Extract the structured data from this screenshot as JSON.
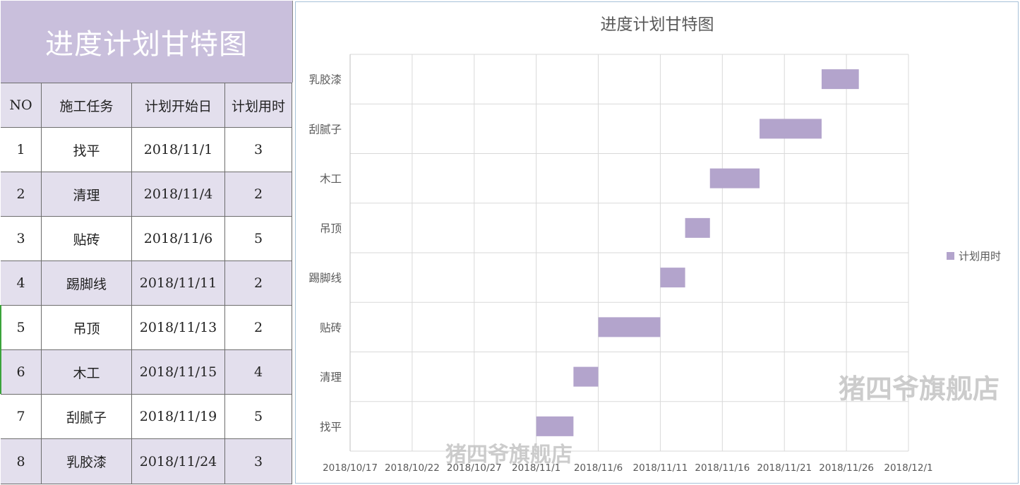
{
  "table": {
    "title": "进度计划甘特图",
    "headers": [
      "NO",
      "施工任务",
      "计划开始日",
      "计划用时"
    ],
    "rows": [
      {
        "no": "1",
        "task": "找平",
        "start": "2018/11/1",
        "days": "3"
      },
      {
        "no": "2",
        "task": "清理",
        "start": "2018/11/4",
        "days": "2"
      },
      {
        "no": "3",
        "task": "贴砖",
        "start": "2018/11/6",
        "days": "5"
      },
      {
        "no": "4",
        "task": "踢脚线",
        "start": "2018/11/11",
        "days": "2"
      },
      {
        "no": "5",
        "task": "吊顶",
        "start": "2018/11/13",
        "days": "2"
      },
      {
        "no": "6",
        "task": "木工",
        "start": "2018/11/15",
        "days": "4"
      },
      {
        "no": "7",
        "task": "刮腻子",
        "start": "2018/11/19",
        "days": "5"
      },
      {
        "no": "8",
        "task": "乳胶漆",
        "start": "2018/11/24",
        "days": "3"
      }
    ]
  },
  "chart_data": {
    "type": "bar",
    "orientation": "horizontal",
    "stacked_hidden_start": true,
    "title": "进度计划甘特图",
    "categories": [
      "找平",
      "清理",
      "贴砖",
      "踢脚线",
      "吊顶",
      "木工",
      "刮腻子",
      "乳胶漆"
    ],
    "series": [
      {
        "name": "计划用时",
        "start": [
          "2018-11-01",
          "2018-11-04",
          "2018-11-06",
          "2018-11-11",
          "2018-11-13",
          "2018-11-15",
          "2018-11-19",
          "2018-11-24"
        ],
        "values": [
          3,
          2,
          5,
          2,
          2,
          4,
          5,
          3
        ],
        "color": "#b3a4cc"
      }
    ],
    "x_ticks": [
      "2018/10/17",
      "2018/10/22",
      "2018/10/27",
      "2018/11/1",
      "2018/11/6",
      "2018/11/11",
      "2018/11/16",
      "2018/11/21",
      "2018/11/26",
      "2018/12/1"
    ],
    "xlim": [
      "2018-10-17",
      "2018-12-01"
    ],
    "grid": true,
    "legend": "right"
  },
  "watermark": "猪四爷旗舰店",
  "colors": {
    "header_bg": "#c9bfdc",
    "band": "#e3dfed",
    "bar": "#b3a4cc"
  }
}
